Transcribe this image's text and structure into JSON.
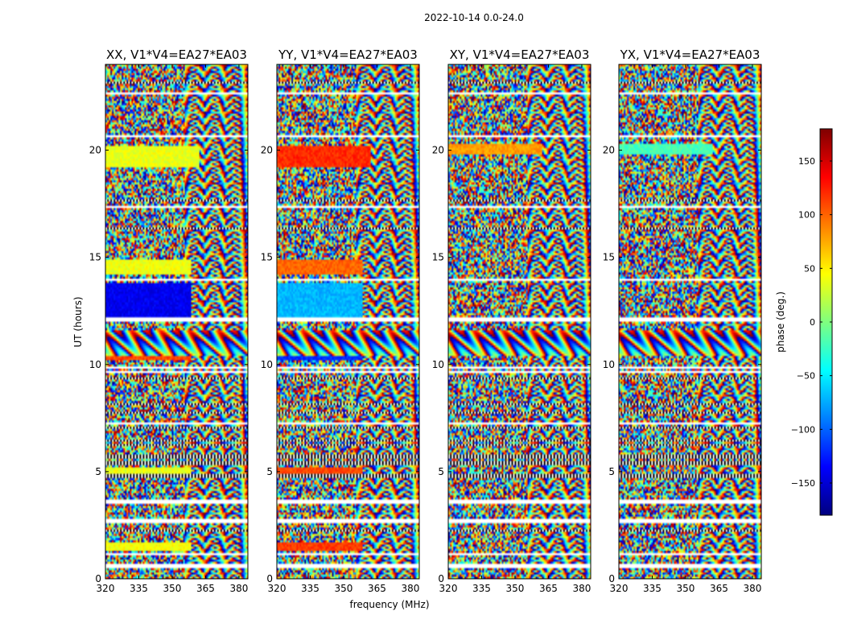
{
  "figure_title": "2022-10-14 0.0-24.0",
  "chart_data": {
    "type": "heatmap",
    "title": "2022-10-14 0.0-24.0",
    "xlabel": "frequency (MHz)",
    "ylabel": "UT (hours)",
    "colorbar_label": "phase (deg.)",
    "xlim": [
      320,
      384
    ],
    "ylim": [
      0,
      24
    ],
    "clim": [
      -180,
      180
    ],
    "xticks": [
      320,
      335,
      350,
      365,
      380
    ],
    "yticks": [
      0,
      5,
      10,
      15,
      20
    ],
    "cticks": [
      150,
      100,
      50,
      0,
      -50,
      -100,
      -150
    ],
    "cticks_text": [
      "150",
      "100",
      "50",
      "0",
      "−50",
      "−100",
      "−150"
    ],
    "colormap": [
      "#00007f",
      "#0000ff",
      "#007fff",
      "#00ffff",
      "#7fff7f",
      "#ffff00",
      "#ff7f00",
      "#ff0000",
      "#7f0000"
    ],
    "panels": [
      {
        "title": "XX, V1*V4=EA27*EA03",
        "bias": 40,
        "strong_block": [
          20.2,
          19.2,
          38
        ],
        "blocks": [
          [
            14.2,
            14.9,
            40
          ],
          [
            4.9,
            5.2,
            38
          ],
          [
            1.3,
            1.7,
            42
          ],
          [
            10.2,
            11.0,
            110
          ],
          [
            12.0,
            13.8,
            -140
          ]
        ]
      },
      {
        "title": "YY, V1*V4=EA27*EA03",
        "bias": 110,
        "strong_block": [
          20.2,
          19.2,
          120
        ],
        "blocks": [
          [
            14.2,
            14.9,
            100
          ],
          [
            4.9,
            5.2,
            110
          ],
          [
            1.3,
            1.7,
            115
          ],
          [
            10.2,
            11.0,
            -120
          ],
          [
            12.0,
            13.8,
            -70
          ]
        ]
      },
      {
        "title": "XY, V1*V4=EA27*EA03",
        "bias": 0,
        "strong_block": [
          20.3,
          19.8,
          80
        ],
        "blocks": []
      },
      {
        "title": "YX, V1*V4=EA27*EA03",
        "bias": 0,
        "strong_block": [
          20.3,
          19.8,
          -20
        ],
        "blocks": []
      }
    ],
    "gap_rows": [
      23.7,
      23.2,
      22.6,
      21.8,
      20.6,
      20.5,
      17.4,
      15.2,
      14.1,
      13.9,
      13.3,
      12.1,
      11.6,
      9.8,
      9.7,
      9.0,
      7.3,
      6.0,
      3.6,
      2.7,
      1.9,
      1.2,
      0.6
    ],
    "dark_rows": [
      23.5,
      23.1,
      21.3,
      17.6,
      17.2,
      16.4,
      9.3,
      8.6,
      8.2,
      7.7,
      7.0,
      6.5,
      6.2,
      5.7,
      5.4,
      4.8,
      2.3
    ]
  }
}
